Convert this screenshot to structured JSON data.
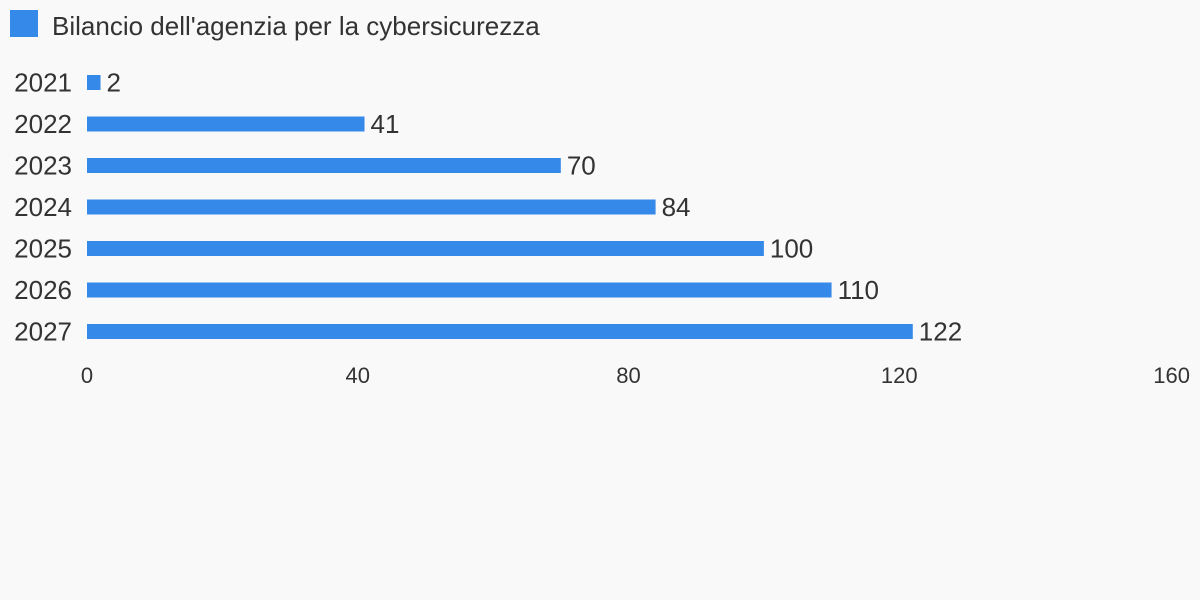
{
  "colors": {
    "background": "#f9f9f9",
    "bar": "#3589e8",
    "text": "#333333"
  },
  "chart_data": {
    "type": "bar",
    "orientation": "horizontal",
    "series": [
      {
        "name": "Bilancio dell'agenzia per la cybersicurezza",
        "values": [
          2,
          41,
          70,
          84,
          100,
          110,
          122
        ]
      }
    ],
    "categories": [
      "2021",
      "2022",
      "2023",
      "2024",
      "2025",
      "2026",
      "2027"
    ],
    "value_labels": [
      "2",
      "41",
      "70",
      "84",
      "100",
      "110",
      "122"
    ],
    "xlim": [
      0,
      160
    ],
    "x_ticks": [
      0,
      40,
      80,
      120,
      160
    ],
    "x_tick_labels": [
      "0",
      "40",
      "80",
      "120",
      "160"
    ],
    "grid": false,
    "legend": {
      "placement": "top-left",
      "label": "Bilancio dell'agenzia per la cybersicurezza"
    }
  }
}
